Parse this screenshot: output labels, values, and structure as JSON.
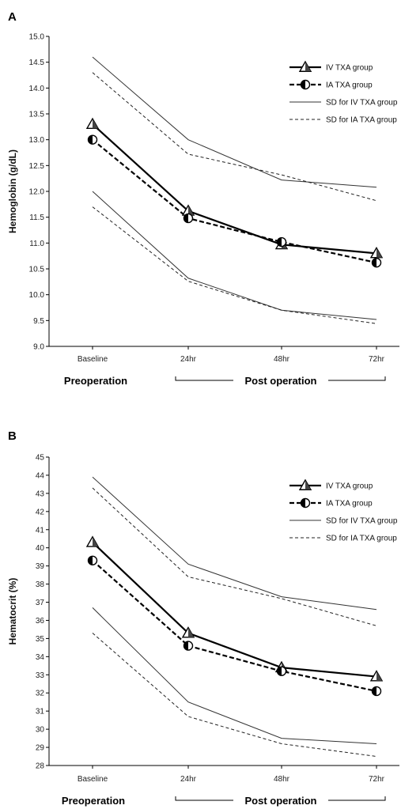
{
  "chart_data": [
    {
      "type": "line",
      "panel_label": "A",
      "ylabel": "Hemoglobin (g/dL)",
      "categories": [
        "Baseline",
        "24hr",
        "48hr",
        "72hr"
      ],
      "ylim": [
        9.0,
        15.0
      ],
      "yticks": [
        "9.0",
        "9.5",
        "10.0",
        "10.5",
        "11.0",
        "11.5",
        "12.0",
        "12.5",
        "13.0",
        "13.5",
        "14.0",
        "14.5",
        "15.0"
      ],
      "series": [
        {
          "name": "IV TXA group",
          "values": [
            13.3,
            11.62,
            10.97,
            10.8
          ],
          "style": "solid-bold",
          "marker": "triangle"
        },
        {
          "name": "IA TXA group",
          "values": [
            13.0,
            11.48,
            11.02,
            10.62
          ],
          "style": "dashed-bold",
          "marker": "half-circle"
        },
        {
          "name": "SD for IV TXA group",
          "values_upper": [
            14.6,
            13.0,
            12.22,
            12.08
          ],
          "values_lower": [
            12.0,
            10.32,
            9.7,
            9.52
          ],
          "style": "solid-thin"
        },
        {
          "name": "SD for IA TXA group",
          "values_upper": [
            14.3,
            12.72,
            12.32,
            11.82
          ],
          "values_lower": [
            11.7,
            10.26,
            9.7,
            9.44
          ],
          "style": "dashed-thin"
        }
      ],
      "phases": {
        "pre": "Preoperation",
        "post": "Post operation"
      },
      "legend": "top-right"
    },
    {
      "type": "line",
      "panel_label": "B",
      "ylabel": "Hematocrit (%)",
      "categories": [
        "Baseline",
        "24hr",
        "48hr",
        "72hr"
      ],
      "ylim": [
        28,
        45
      ],
      "yticks": [
        "28",
        "29",
        "30",
        "31",
        "32",
        "33",
        "34",
        "35",
        "36",
        "37",
        "38",
        "39",
        "40",
        "41",
        "42",
        "43",
        "44",
        "45"
      ],
      "series": [
        {
          "name": "IV TXA group",
          "values": [
            40.3,
            35.3,
            33.4,
            32.9
          ],
          "style": "solid-bold",
          "marker": "triangle"
        },
        {
          "name": "IA TXA group",
          "values": [
            39.3,
            34.6,
            33.2,
            32.1
          ],
          "style": "dashed-bold",
          "marker": "half-circle"
        },
        {
          "name": "SD for IV TXA group",
          "values_upper": [
            43.9,
            39.1,
            37.3,
            36.6
          ],
          "values_lower": [
            36.7,
            31.5,
            29.5,
            29.2
          ],
          "style": "solid-thin"
        },
        {
          "name": "SD for IA TXA group",
          "values_upper": [
            43.3,
            38.4,
            37.2,
            35.7
          ],
          "values_lower": [
            35.3,
            30.7,
            29.2,
            28.5
          ],
          "style": "dashed-thin"
        }
      ],
      "phases": {
        "pre": "Preoperation",
        "post": "Post operation"
      },
      "legend": "top-right"
    }
  ]
}
